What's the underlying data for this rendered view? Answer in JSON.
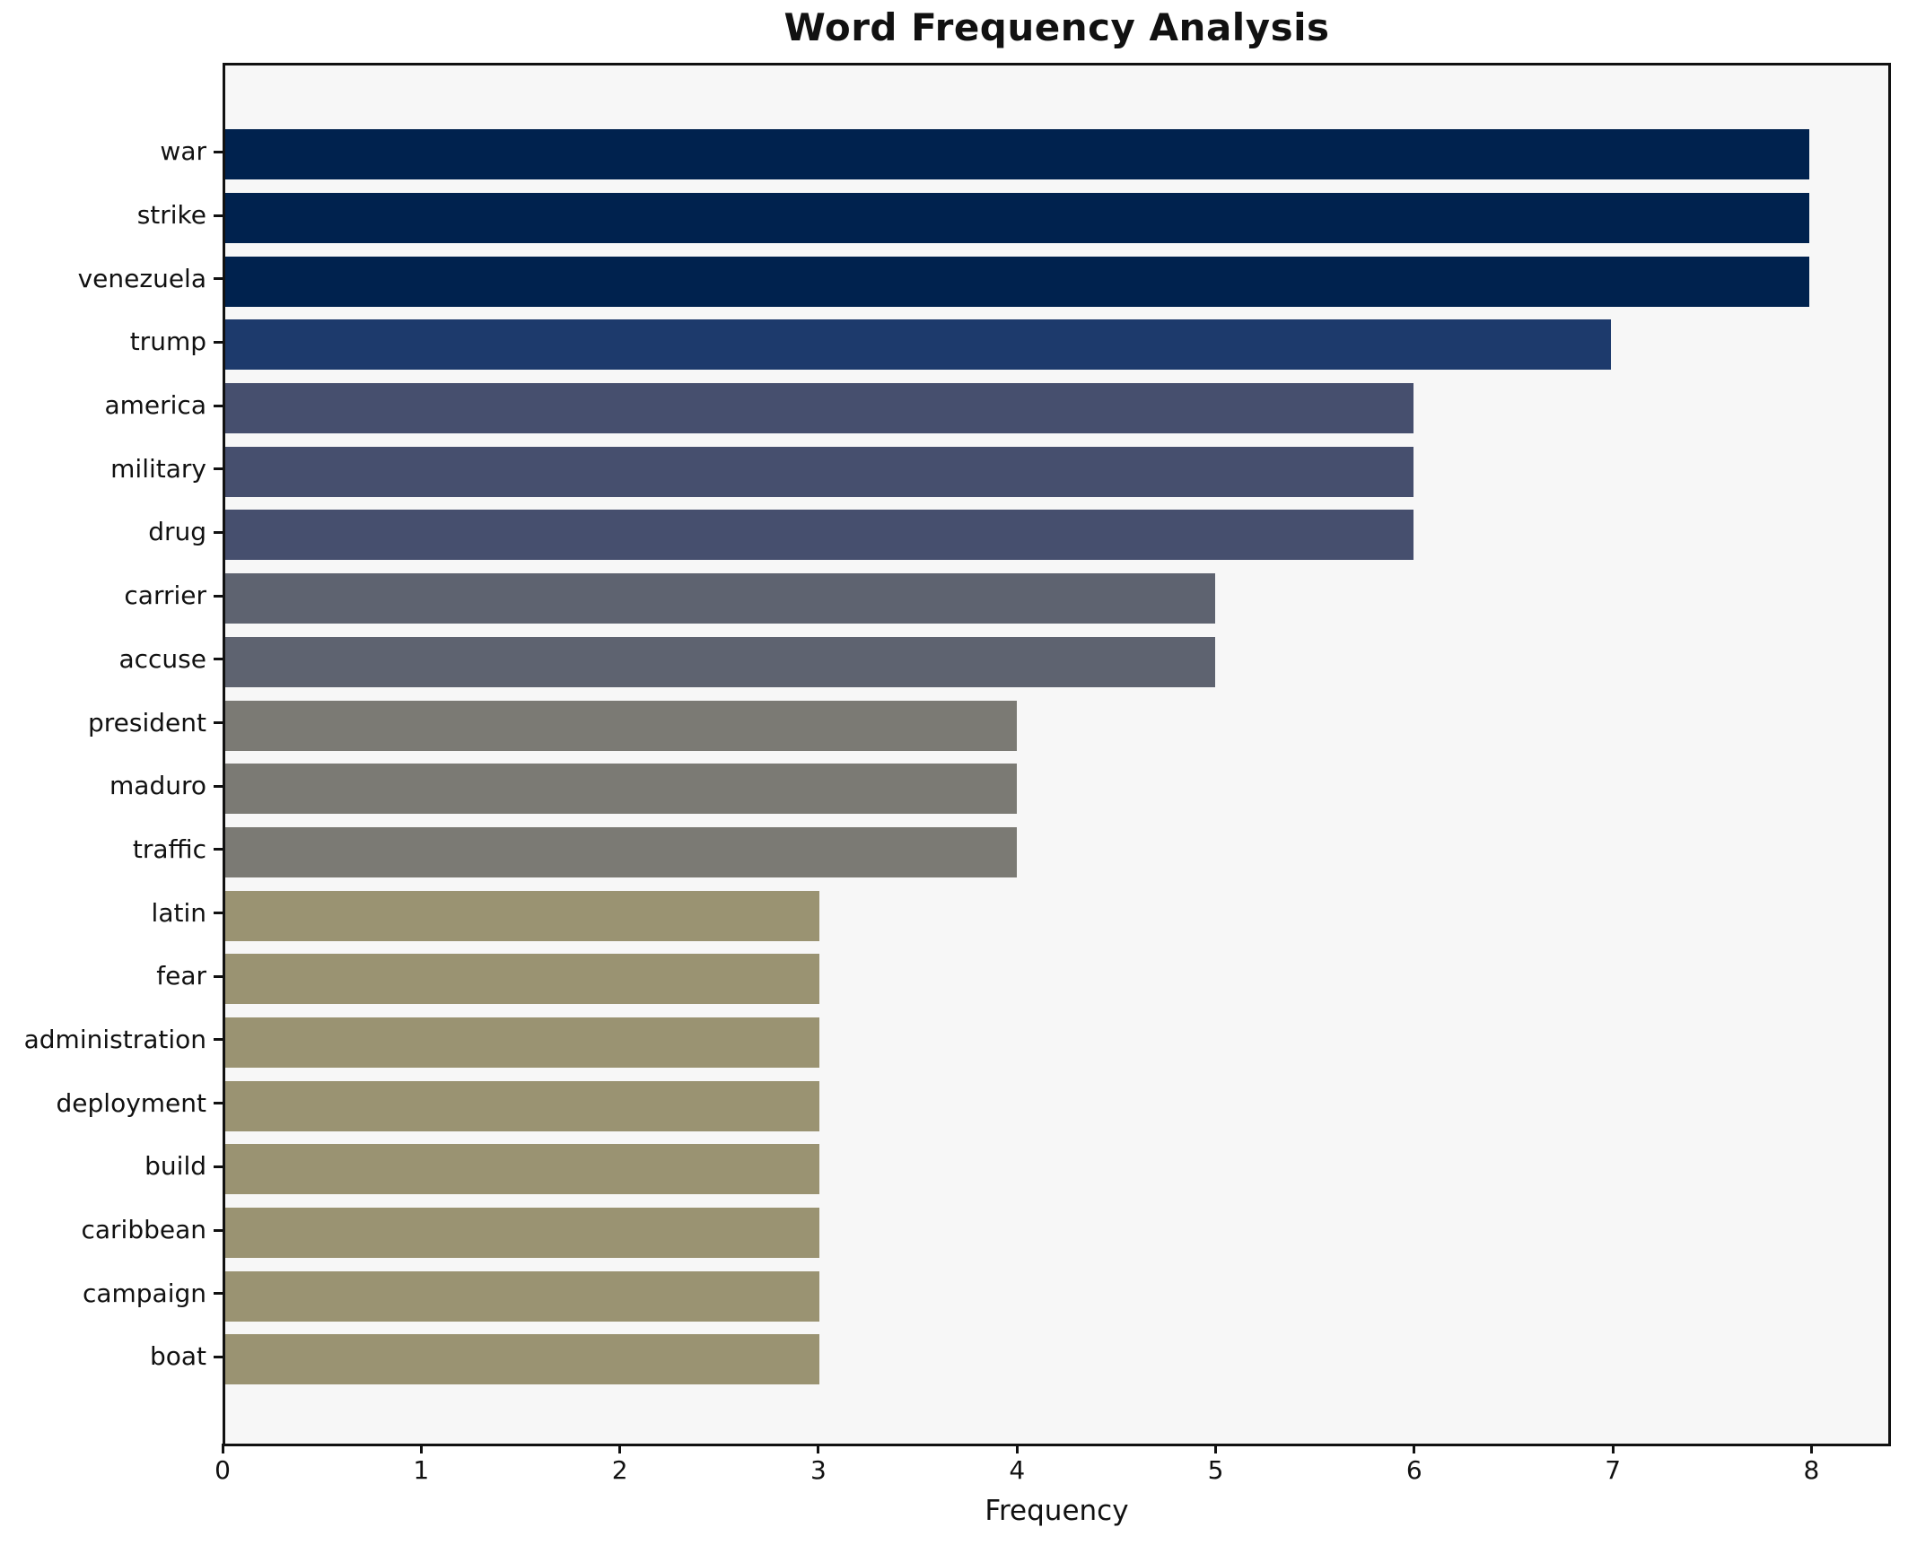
{
  "chart_data": {
    "type": "bar",
    "orientation": "horizontal",
    "title": "Word Frequency Analysis",
    "xlabel": "Frequency",
    "ylabel": "",
    "categories": [
      "war",
      "strike",
      "venezuela",
      "trump",
      "america",
      "military",
      "drug",
      "carrier",
      "accuse",
      "president",
      "maduro",
      "traffic",
      "latin",
      "fear",
      "administration",
      "deployment",
      "build",
      "caribbean",
      "campaign",
      "boat"
    ],
    "values": [
      8,
      8,
      8,
      7,
      6,
      6,
      6,
      5,
      5,
      4,
      4,
      4,
      3,
      3,
      3,
      3,
      3,
      3,
      3,
      3
    ],
    "bar_colors": [
      "#00224e",
      "#00224e",
      "#00224e",
      "#1d3a6c",
      "#464f6e",
      "#464f6e",
      "#464f6e",
      "#5e6370",
      "#5e6370",
      "#7b7a74",
      "#7b7a74",
      "#7b7a74",
      "#9a9372",
      "#9a9372",
      "#9a9372",
      "#9a9372",
      "#9a9372",
      "#9a9372",
      "#9a9372",
      "#9a9372"
    ],
    "x_ticks": [
      0,
      1,
      2,
      3,
      4,
      5,
      6,
      7,
      8
    ],
    "xlim": [
      0,
      8.4
    ],
    "grid": false,
    "legend_position": "none",
    "plot_background": "#f7f7f7",
    "figure_background": "#ffffff",
    "spine_color": "#111111",
    "text_color": "#111111"
  }
}
